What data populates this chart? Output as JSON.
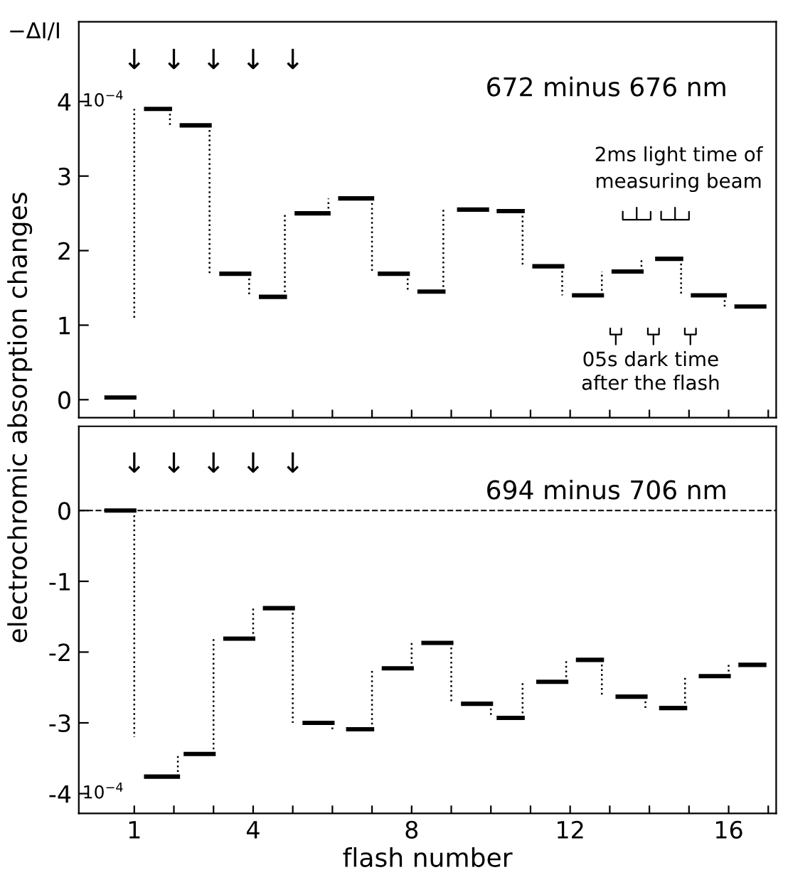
{
  "chart_data": [
    {
      "type": "line",
      "title": "672 minus 676 nm",
      "ylabel": "electrochromic absorption changes",
      "x": [
        0.3,
        1.0,
        null,
        1.3,
        1.9,
        null,
        2.2,
        2.9,
        null,
        3.2,
        3.9,
        null,
        4.2,
        4.8,
        null,
        5.1,
        5.9,
        null,
        6.2,
        7.0,
        null,
        7.2,
        7.9,
        null,
        8.2,
        8.8,
        null,
        9.2,
        9.9,
        null,
        10.2,
        10.8,
        null,
        11.1,
        11.8,
        null,
        12.1,
        12.8,
        null,
        13.1,
        13.8,
        null,
        14.2,
        14.8,
        null,
        15.1,
        15.9,
        null,
        16.2,
        16.9
      ],
      "series": [
        {
          "color": "#000000",
          "values": [
            0.03,
            0.03,
            null,
            3.9,
            3.9,
            null,
            3.68,
            3.68,
            null,
            1.69,
            1.69,
            null,
            1.38,
            1.38,
            null,
            2.5,
            2.5,
            null,
            2.7,
            2.7,
            null,
            1.69,
            1.69,
            null,
            1.45,
            1.45,
            null,
            2.55,
            2.55,
            null,
            2.53,
            2.53,
            null,
            1.79,
            1.79,
            null,
            1.4,
            1.4,
            null,
            1.72,
            1.72,
            null,
            1.89,
            1.89,
            null,
            1.4,
            1.4,
            null,
            1.25,
            1.25
          ]
        },
        {
          "color": "#000000",
          "line_style": "dotted",
          "x": [
            1.0,
            1.0,
            null,
            1.9,
            1.9,
            null,
            2.9,
            2.9,
            null,
            3.9,
            3.9,
            null,
            4.8,
            4.8,
            null,
            5.9,
            5.9,
            null,
            7.0,
            7.0,
            null,
            7.9,
            7.9,
            null,
            8.8,
            8.8,
            null,
            10.8,
            10.8,
            null,
            11.8,
            11.8,
            null,
            12.8,
            12.8,
            null,
            13.8,
            13.8,
            null,
            14.8,
            14.8,
            null,
            15.9,
            15.9
          ],
          "values": [
            1.1,
            3.9,
            null,
            3.9,
            3.68,
            null,
            3.68,
            1.69,
            null,
            1.69,
            1.38,
            null,
            1.38,
            2.5,
            null,
            2.5,
            2.7,
            null,
            2.7,
            1.69,
            null,
            1.69,
            1.45,
            null,
            1.45,
            2.55,
            null,
            2.53,
            1.79,
            null,
            1.79,
            1.4,
            null,
            1.4,
            1.72,
            null,
            1.72,
            1.89,
            null,
            1.89,
            1.4,
            null,
            1.4,
            1.25
          ]
        }
      ],
      "xlim": [
        -0.4,
        17.2
      ],
      "ylim": [
        -0.24,
        5.07
      ],
      "xticks": [
        {
          "value": 1,
          "label": "1"
        },
        {
          "value": 2,
          "label": null
        },
        {
          "value": 3,
          "label": null
        },
        {
          "value": 4,
          "label": "4"
        },
        {
          "value": 5,
          "label": null
        },
        {
          "value": 6,
          "label": null
        },
        {
          "value": 7,
          "label": null
        },
        {
          "value": 8,
          "label": "8"
        },
        {
          "value": 9,
          "label": null
        },
        {
          "value": 10,
          "label": null
        },
        {
          "value": 11,
          "label": null
        },
        {
          "value": 12,
          "label": "12"
        },
        {
          "value": 13,
          "label": null
        },
        {
          "value": 14,
          "label": null
        },
        {
          "value": 15,
          "label": null
        },
        {
          "value": 16,
          "label": "16"
        },
        {
          "value": 17,
          "label": null
        }
      ],
      "yticks": [
        0,
        1,
        2,
        3,
        4
      ],
      "tick_labels": "y",
      "marker": "none",
      "line_style": "solid",
      "annotations": [
        "−ΔI/I",
        "10$^{−4}$",
        "↓",
        "↓",
        "↓",
        "↓",
        "↓",
        "2ms light time of\nmeasuring beam",
        "05s dark time\nafter the flash"
      ]
    },
    {
      "type": "line",
      "title": "694 minus 706 nm",
      "xlabel": "flash number",
      "x": [
        0.3,
        1.0,
        null,
        1.3,
        2.1,
        null,
        2.3,
        3.0,
        null,
        3.3,
        4.0,
        null,
        4.3,
        5.0,
        null,
        5.3,
        6.0,
        null,
        6.4,
        7.0,
        null,
        7.3,
        8.0,
        null,
        8.3,
        9.0,
        null,
        9.3,
        10.0,
        null,
        10.2,
        10.8,
        null,
        11.2,
        11.9,
        null,
        12.2,
        12.8,
        null,
        13.2,
        13.9,
        null,
        14.3,
        14.9,
        null,
        15.3,
        16.0,
        null,
        16.3,
        16.9
      ],
      "series": [
        {
          "color": "#000000",
          "values": [
            0.0,
            0.0,
            null,
            -3.76,
            -3.76,
            null,
            -3.44,
            -3.44,
            null,
            -1.81,
            -1.81,
            null,
            -1.38,
            -1.38,
            null,
            -3.0,
            -3.0,
            null,
            -3.09,
            -3.09,
            null,
            -2.23,
            -2.23,
            null,
            -1.87,
            -1.87,
            null,
            -2.73,
            -2.73,
            null,
            -2.93,
            -2.93,
            null,
            -2.42,
            -2.42,
            null,
            -2.11,
            -2.11,
            null,
            -2.63,
            -2.63,
            null,
            -2.79,
            -2.79,
            null,
            -2.34,
            -2.34,
            null,
            -2.18,
            -2.18
          ]
        },
        {
          "color": "#000000",
          "line_style": "dotted",
          "x": [
            1.0,
            1.0,
            null,
            2.1,
            2.1,
            null,
            3.0,
            3.0,
            null,
            4.0,
            4.0,
            null,
            5.0,
            5.0,
            null,
            6.0,
            6.0,
            null,
            7.0,
            7.0,
            null,
            8.0,
            8.0,
            null,
            9.0,
            9.0,
            null,
            10.0,
            10.0,
            null,
            10.8,
            10.8,
            null,
            11.9,
            11.9,
            null,
            12.8,
            12.8,
            null,
            13.9,
            13.9,
            null,
            14.9,
            14.9,
            null,
            16.0,
            16.0
          ],
          "values": [
            0.0,
            -3.2,
            null,
            -3.76,
            -3.44,
            null,
            -3.44,
            -1.81,
            null,
            -1.81,
            -1.38,
            null,
            -1.38,
            -3.0,
            null,
            -3.0,
            -3.09,
            null,
            -3.09,
            -2.23,
            null,
            -2.23,
            -1.87,
            null,
            -1.87,
            -2.73,
            null,
            -2.73,
            -2.93,
            null,
            -2.93,
            -2.42,
            null,
            -2.42,
            -2.11,
            null,
            -2.11,
            -2.63,
            null,
            -2.63,
            -2.79,
            null,
            -2.79,
            -2.34,
            null,
            -2.34,
            -2.18
          ]
        }
      ],
      "xlim": [
        -0.4,
        17.2
      ],
      "ylim": [
        -4.28,
        1.19
      ],
      "xticks": [
        {
          "value": 1,
          "label": "1"
        },
        {
          "value": 2,
          "label": null
        },
        {
          "value": 3,
          "label": null
        },
        {
          "value": 4,
          "label": "4"
        },
        {
          "value": 5,
          "label": null
        },
        {
          "value": 6,
          "label": null
        },
        {
          "value": 7,
          "label": null
        },
        {
          "value": 8,
          "label": "8"
        },
        {
          "value": 9,
          "label": null
        },
        {
          "value": 10,
          "label": null
        },
        {
          "value": 11,
          "label": null
        },
        {
          "value": 12,
          "label": "12"
        },
        {
          "value": 13,
          "label": null
        },
        {
          "value": 14,
          "label": null
        },
        {
          "value": 15,
          "label": null
        },
        {
          "value": 16,
          "label": "16"
        },
        {
          "value": 17,
          "label": null
        }
      ],
      "yticks": [
        -4,
        -3,
        -2,
        -1,
        0
      ],
      "marker": "none",
      "line_style": "solid",
      "ref_lines": [
        {
          "axis": "y",
          "value": 0,
          "line_style": "dashed"
        }
      ],
      "annotations": [
        "10$^{−4}$",
        "↓",
        "↓",
        "↓",
        "↓",
        "↓"
      ]
    }
  ]
}
